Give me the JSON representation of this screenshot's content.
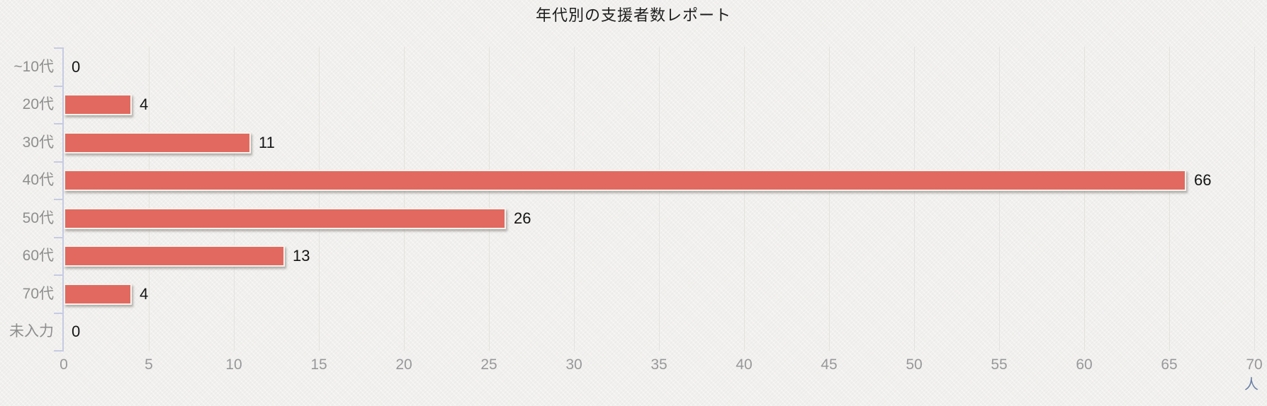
{
  "chart_data": {
    "type": "bar",
    "orientation": "horizontal",
    "title": "年代別の支援者数レポート",
    "categories": [
      "~10代",
      "20代",
      "30代",
      "40代",
      "50代",
      "60代",
      "70代",
      "未入力"
    ],
    "values": [
      0,
      4,
      11,
      66,
      26,
      13,
      4,
      0
    ],
    "xlabel_unit": "人",
    "xlim": [
      0,
      70
    ],
    "x_tick_step": 5,
    "x_ticks": [
      0,
      5,
      10,
      15,
      20,
      25,
      30,
      35,
      40,
      45,
      50,
      55,
      60,
      65,
      70
    ],
    "grid": true,
    "legend": false,
    "ylabel": "",
    "xlabel": "",
    "colors": {
      "bar_fill": "#e1695f",
      "bar_border": "#f5f2ed",
      "axis_line": "#c6cbe2",
      "gridline": "#e3e2de",
      "tick_label": "#98989a",
      "category_label": "#8e8e8e",
      "value_label": "#141414",
      "title": "#1c1c1c",
      "unit_label": "#6a7fa4",
      "background": "#f1f0ee"
    }
  }
}
